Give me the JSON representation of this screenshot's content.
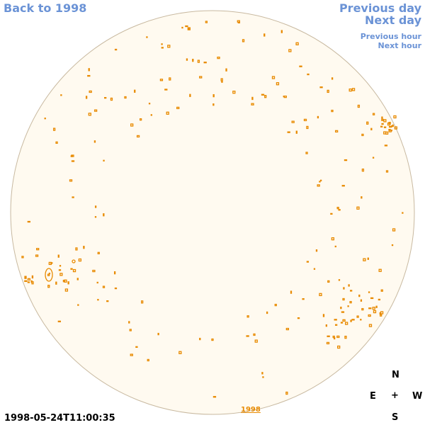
{
  "nav": {
    "back": "Back to 1998",
    "previous_day": "Previous day",
    "next_day": "Next day",
    "previous_hour": "Previous hour",
    "next_hour": "Next hour"
  },
  "timestamp": "1998-05-24T11:00:35",
  "year_link": "1998",
  "compass": {
    "north": "N",
    "east": "E",
    "center": "+",
    "west": "W",
    "south": "S"
  },
  "colors": {
    "disk_fill": "#fffaf0",
    "disk_border": "#c8b9a0",
    "feature": "#e88a00",
    "link": "#6b93d6"
  }
}
